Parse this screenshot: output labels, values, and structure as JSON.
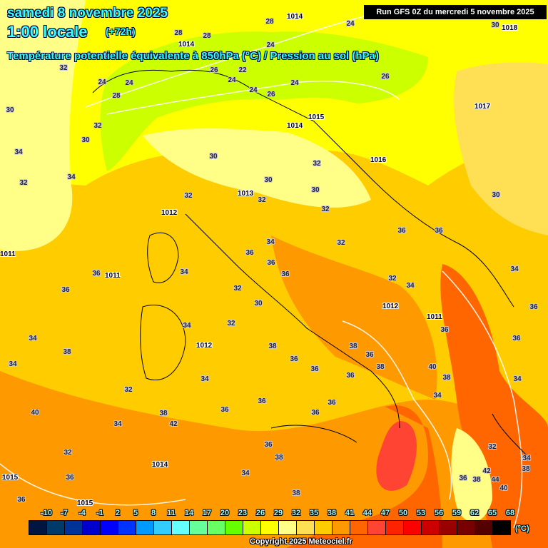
{
  "header": {
    "date": "samedi 8 novembre 2025",
    "time": "1:00 locale",
    "lead": "(+72h)",
    "parameter": "Température potentielle équivalente à 850hPa (°C) / Pression au sol (hPa)",
    "run": "Run GFS 0Z du mercredi 5 novembre 2025"
  },
  "legend": {
    "ticks": [
      "-10",
      "-7",
      "-4",
      "-1",
      "2",
      "5",
      "8",
      "11",
      "14",
      "17",
      "20",
      "23",
      "26",
      "29",
      "32",
      "35",
      "38",
      "41",
      "44",
      "47",
      "50",
      "53",
      "56",
      "59",
      "62",
      "65",
      "68"
    ],
    "colors": [
      "#001540",
      "#003a6a",
      "#003399",
      "#0000cc",
      "#0000ff",
      "#0033ff",
      "#0099ff",
      "#33ccff",
      "#66ffff",
      "#66ff99",
      "#66ff66",
      "#66ff00",
      "#ccff00",
      "#ffff00",
      "#ffff88",
      "#ffe055",
      "#ffcc00",
      "#ff9900",
      "#ff6600",
      "#ff4433",
      "#ff2200",
      "#ff0000",
      "#cc0000",
      "#990000",
      "#770000",
      "#550000",
      "#000000"
    ],
    "unit": "(°C)"
  },
  "copyright": "Copyright 2025 Meteociel.fr",
  "theta_labels": [
    "28",
    "24",
    "28",
    "28",
    "32",
    "24",
    "24",
    "26",
    "22",
    "24",
    "24",
    "26",
    "30",
    "24",
    "24",
    "26",
    "28",
    "32",
    "30",
    "30",
    "34",
    "30",
    "32",
    "32",
    "34",
    "32",
    "30",
    "30",
    "32",
    "32",
    "30",
    "32",
    "34",
    "36",
    "36",
    "36",
    "36",
    "36",
    "34",
    "36",
    "36",
    "32",
    "30",
    "32",
    "34",
    "34",
    "36",
    "34",
    "32",
    "36",
    "40",
    "38",
    "38",
    "38",
    "36",
    "36",
    "34",
    "34",
    "38",
    "32",
    "34",
    "36",
    "36",
    "36",
    "38",
    "36",
    "34",
    "34",
    "36",
    "36",
    "36",
    "38",
    "40",
    "42",
    "34",
    "36",
    "38",
    "32",
    "34",
    "36",
    "38",
    "42",
    "44",
    "40",
    "38",
    "32",
    "36",
    "34",
    "38",
    "36"
  ],
  "pressure_labels": [
    "1014",
    "1014",
    "1018",
    "1015",
    "1014",
    "1017",
    "1016",
    "1013",
    "1012",
    "1011",
    "1012",
    "1011",
    "1012",
    "1014",
    "1015",
    "1015",
    "1011"
  ]
}
